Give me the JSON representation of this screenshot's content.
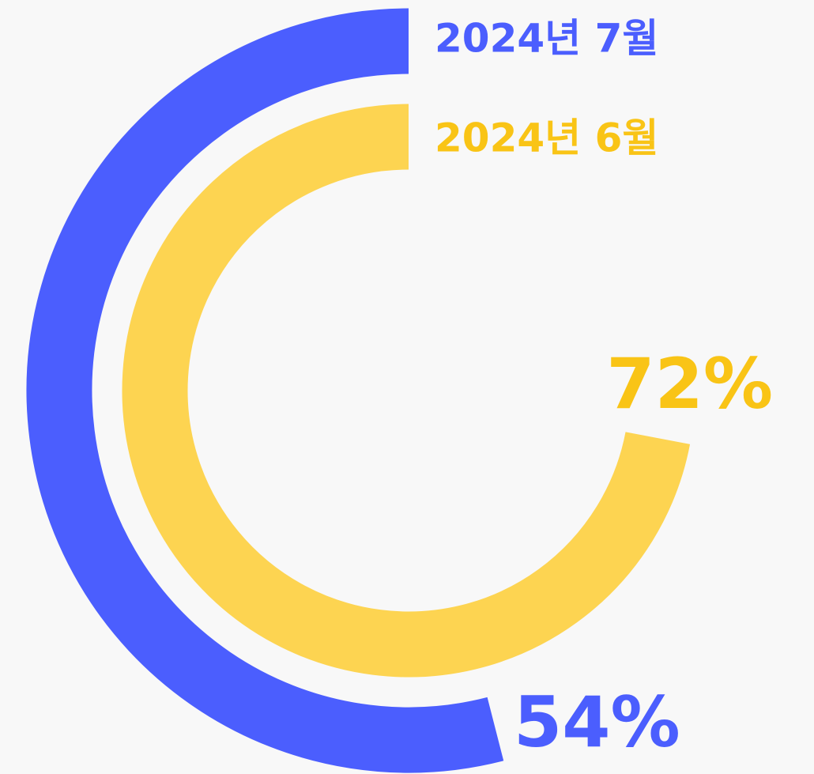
{
  "chart_data": {
    "type": "radial_bar",
    "ylim": [
      0,
      100
    ],
    "series": [
      {
        "name": "2024년 7월",
        "color": "#4b5efe",
        "label_color": "#4b5efe",
        "values": [
          54
        ],
        "value_labels": [
          "54%"
        ]
      },
      {
        "name": "2024년 6월",
        "color": "#fdd451",
        "label_color": "#f9c416",
        "values": [
          72
        ],
        "value_labels": [
          "72%"
        ]
      }
    ]
  }
}
